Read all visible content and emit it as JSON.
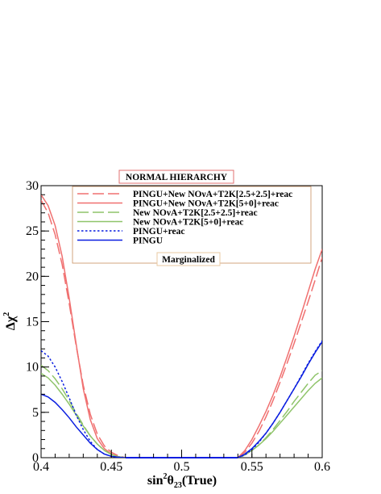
{
  "chart_data": {
    "type": "line",
    "title": "NORMAL HIERARCHY",
    "annotation": "Marginalized",
    "xlabel_parts": [
      "sin",
      "2",
      "θ",
      "23",
      "(True)"
    ],
    "ylabel_parts": [
      "Δχ",
      "2"
    ],
    "xlim": [
      0.4,
      0.6
    ],
    "ylim": [
      0,
      30
    ],
    "xticks": [
      0.4,
      0.45,
      0.5,
      0.55,
      0.6
    ],
    "xtick_labels": [
      "0.4",
      "0.45",
      "0.5",
      "0.55",
      "0.6"
    ],
    "yticks": [
      0,
      5,
      10,
      15,
      20,
      25,
      30
    ],
    "ytick_labels": [
      "0",
      "5",
      "10",
      "15",
      "20",
      "25",
      "30"
    ],
    "grid": false,
    "legend_position": "top-right",
    "series": [
      {
        "name": "PINGU+New NOνA+T2K[2.5+2.5]+reac",
        "color": "#f07070",
        "dash": "long-dash",
        "x": [
          0.4,
          0.405,
          0.41,
          0.415,
          0.42,
          0.425,
          0.43,
          0.435,
          0.44,
          0.445,
          0.45,
          0.455,
          0.46,
          0.54,
          0.545,
          0.55,
          0.555,
          0.56,
          0.565,
          0.57,
          0.575,
          0.58,
          0.585,
          0.59,
          0.595,
          0.6
        ],
        "y": [
          28.4,
          27.0,
          24.6,
          21.3,
          17.0,
          12.3,
          8.0,
          4.8,
          2.6,
          1.3,
          0.6,
          0.2,
          0.0,
          0.0,
          0.6,
          1.6,
          2.9,
          4.5,
          6.3,
          8.3,
          10.4,
          12.6,
          14.9,
          17.2,
          19.6,
          22.1
        ]
      },
      {
        "name": "PINGU+New NOνA+T2K[5+0]+reac",
        "color": "#f07070",
        "dash": "solid",
        "x": [
          0.4,
          0.405,
          0.41,
          0.415,
          0.42,
          0.425,
          0.43,
          0.435,
          0.44,
          0.445,
          0.45,
          0.455,
          0.46,
          0.54,
          0.545,
          0.55,
          0.555,
          0.56,
          0.565,
          0.57,
          0.575,
          0.58,
          0.585,
          0.59,
          0.595,
          0.6
        ],
        "y": [
          29.0,
          27.8,
          25.6,
          22.2,
          17.6,
          12.5,
          7.6,
          4.2,
          2.1,
          1.0,
          0.4,
          0.1,
          0.0,
          0.0,
          0.8,
          2.0,
          3.5,
          5.1,
          6.9,
          8.9,
          11.1,
          13.4,
          15.8,
          18.3,
          20.8,
          23.0
        ]
      },
      {
        "name": "New NOνA+T2K[2.5+2.5]+reac",
        "color": "#8fc46a",
        "dash": "long-dash",
        "x": [
          0.4,
          0.405,
          0.41,
          0.415,
          0.42,
          0.425,
          0.43,
          0.435,
          0.44,
          0.445,
          0.45,
          0.455,
          0.46,
          0.54,
          0.545,
          0.55,
          0.555,
          0.56,
          0.565,
          0.57,
          0.575,
          0.58,
          0.585,
          0.59,
          0.595,
          0.6
        ],
        "y": [
          10.2,
          9.6,
          8.7,
          7.6,
          6.3,
          4.9,
          3.6,
          2.4,
          1.5,
          0.8,
          0.35,
          0.1,
          0.0,
          0.0,
          0.3,
          0.8,
          1.4,
          2.2,
          3.1,
          4.1,
          5.1,
          6.2,
          7.2,
          8.2,
          9.1,
          9.6
        ]
      },
      {
        "name": "New NOνA+T2K[5+0]+reac",
        "color": "#8fc46a",
        "dash": "solid",
        "x": [
          0.4,
          0.405,
          0.41,
          0.415,
          0.42,
          0.425,
          0.43,
          0.435,
          0.44,
          0.445,
          0.45,
          0.455,
          0.46,
          0.54,
          0.545,
          0.55,
          0.555,
          0.56,
          0.565,
          0.57,
          0.575,
          0.58,
          0.585,
          0.59,
          0.595,
          0.6
        ],
        "y": [
          9.3,
          8.8,
          8.0,
          7.0,
          5.9,
          4.7,
          3.5,
          2.4,
          1.5,
          0.8,
          0.35,
          0.1,
          0.0,
          0.0,
          0.3,
          0.8,
          1.4,
          2.1,
          2.9,
          3.8,
          4.7,
          5.6,
          6.5,
          7.4,
          8.2,
          8.8
        ]
      },
      {
        "name": "PINGU+reac",
        "color": "#0a1ee0",
        "dash": "dotted",
        "x": [
          0.4,
          0.405,
          0.41,
          0.415,
          0.42,
          0.425,
          0.43,
          0.435,
          0.44,
          0.445,
          0.45,
          0.455,
          0.46,
          0.54,
          0.545,
          0.55,
          0.555,
          0.56,
          0.565,
          0.57,
          0.575,
          0.58,
          0.585,
          0.59,
          0.595,
          0.6
        ],
        "y": [
          11.8,
          11.2,
          10.0,
          8.4,
          6.6,
          4.7,
          3.1,
          1.8,
          0.9,
          0.4,
          0.15,
          0.05,
          0.0,
          0.0,
          0.3,
          0.9,
          1.7,
          2.7,
          3.8,
          5.0,
          6.3,
          7.6,
          9.0,
          10.4,
          11.7,
          12.9
        ]
      },
      {
        "name": "PINGU",
        "color": "#0a1ee0",
        "dash": "solid",
        "x": [
          0.4,
          0.405,
          0.41,
          0.415,
          0.42,
          0.425,
          0.43,
          0.435,
          0.44,
          0.445,
          0.45,
          0.455,
          0.46,
          0.54,
          0.545,
          0.55,
          0.555,
          0.56,
          0.565,
          0.57,
          0.575,
          0.58,
          0.585,
          0.59,
          0.595,
          0.6
        ],
        "y": [
          7.0,
          6.7,
          6.1,
          5.3,
          4.4,
          3.4,
          2.5,
          1.6,
          0.9,
          0.4,
          0.15,
          0.05,
          0.0,
          0.0,
          0.4,
          1.0,
          1.8,
          2.7,
          3.8,
          5.0,
          6.3,
          7.6,
          8.9,
          10.3,
          11.6,
          12.8
        ]
      }
    ],
    "flat_segment": {
      "color": "#0a1ee0",
      "x": [
        0.46,
        0.54
      ],
      "y": 0
    }
  }
}
